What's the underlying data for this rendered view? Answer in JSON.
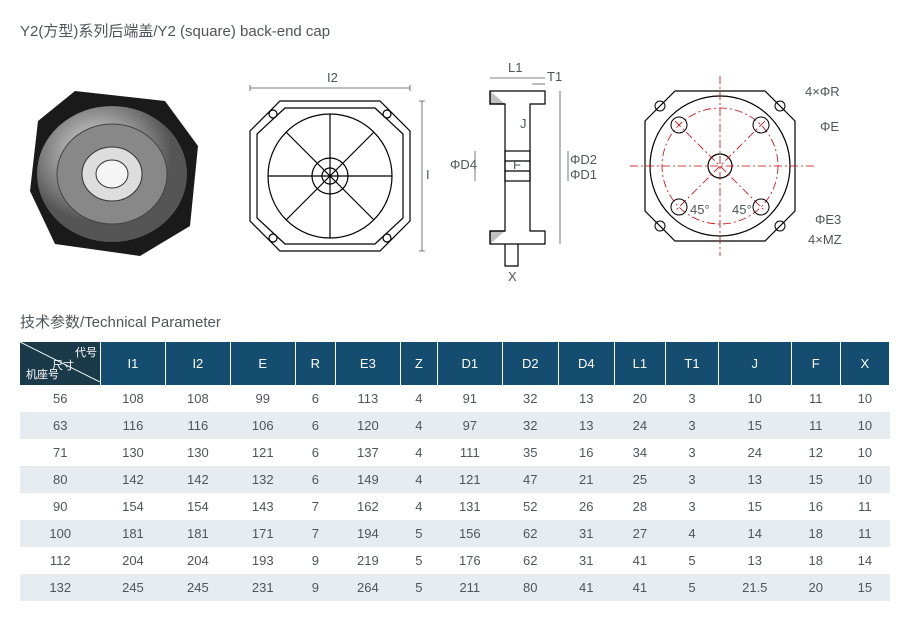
{
  "title": "Y2(方型)系列后端盖/Y2 (square) back-end cap",
  "subtitle": "技术参数/Technical Parameter",
  "diagrams": {
    "view1_labels": {
      "I2": "I2",
      "I1": "I1"
    },
    "view2_labels": {
      "L1": "L1",
      "T1": "T1",
      "J": "J",
      "D4": "ΦD4",
      "F": "F",
      "D2": "ΦD2",
      "D1": "ΦD1",
      "X": "X"
    },
    "view3_labels": {
      "R": "4×ΦR",
      "E": "ΦE",
      "E3": "ΦE3",
      "MZ": "4×MZ",
      "ang1": "45°",
      "ang2": "45°"
    },
    "colors": {
      "stroke": "#000",
      "dim": "#50555b",
      "center": "#c00"
    }
  },
  "table": {
    "corner": {
      "top": "代号",
      "bottom": "机座号",
      "mid": "尺寸"
    },
    "columns": [
      "I1",
      "I2",
      "E",
      "R",
      "E3",
      "Z",
      "D1",
      "D2",
      "D4",
      "L1",
      "T1",
      "J",
      "F",
      "X"
    ],
    "rows": [
      {
        "k": "56",
        "v": [
          108,
          108,
          99,
          6,
          113,
          4,
          91,
          32,
          13,
          20,
          3,
          10,
          11,
          10
        ]
      },
      {
        "k": "63",
        "v": [
          116,
          116,
          106,
          6,
          120,
          4,
          97,
          32,
          13,
          24,
          3,
          15,
          11,
          10
        ]
      },
      {
        "k": "71",
        "v": [
          130,
          130,
          121,
          6,
          137,
          4,
          111,
          35,
          16,
          34,
          3,
          24,
          12,
          10
        ]
      },
      {
        "k": "80",
        "v": [
          142,
          142,
          132,
          6,
          149,
          4,
          121,
          47,
          21,
          25,
          3,
          13,
          15,
          10
        ]
      },
      {
        "k": "90",
        "v": [
          154,
          154,
          143,
          7,
          162,
          4,
          131,
          52,
          26,
          28,
          3,
          15,
          16,
          11
        ]
      },
      {
        "k": "100",
        "v": [
          181,
          181,
          171,
          7,
          194,
          5,
          156,
          62,
          31,
          27,
          4,
          14,
          18,
          11
        ]
      },
      {
        "k": "112",
        "v": [
          204,
          204,
          193,
          9,
          219,
          5,
          176,
          62,
          31,
          41,
          5,
          13,
          18,
          14
        ]
      },
      {
        "k": "132",
        "v": [
          245,
          245,
          231,
          9,
          264,
          5,
          211,
          80,
          41,
          41,
          5,
          21.5,
          20,
          15
        ]
      }
    ],
    "header_bg": "#144d6f",
    "header_fg": "#ffffff",
    "row_alt_bg": "#e6ecef"
  }
}
